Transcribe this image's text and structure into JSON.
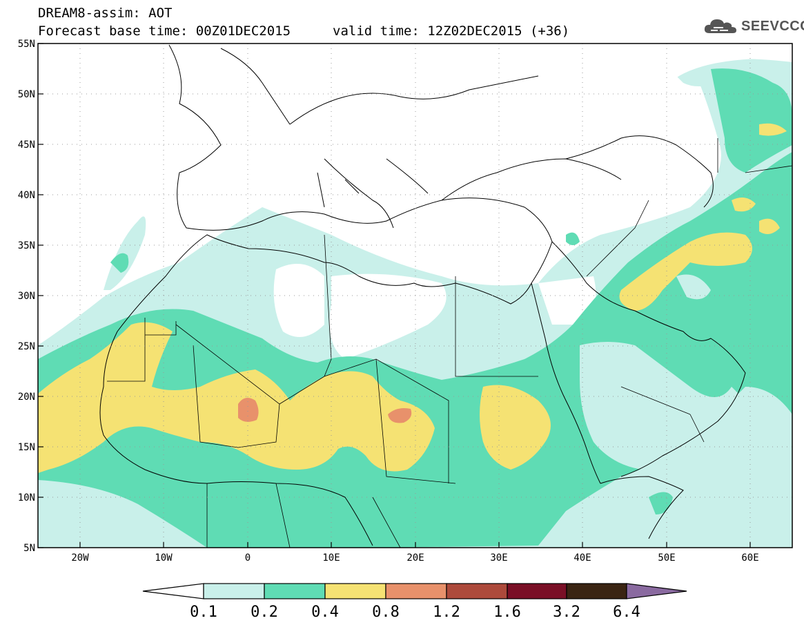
{
  "header": {
    "title_line1": "DREAM8-assim: AOT",
    "base_time_label": "Forecast base time: 00Z01DEC2015",
    "valid_time_label": "valid time: 12Z02DEC2015 (+36)"
  },
  "logo": {
    "text": "SEEVCCC",
    "icon": "cloud-icon"
  },
  "map": {
    "lon_range": [
      -25,
      65
    ],
    "lat_range": [
      5,
      55
    ],
    "lat_ticks": [
      "55N",
      "50N",
      "45N",
      "40N",
      "35N",
      "30N",
      "25N",
      "20N",
      "15N",
      "10N",
      "5N"
    ],
    "lon_ticks": [
      "20W",
      "10W",
      "0",
      "10E",
      "20E",
      "30E",
      "40E",
      "50E",
      "60E"
    ]
  },
  "legend": {
    "labels": [
      "0.1",
      "0.2",
      "0.4",
      "0.8",
      "1.2",
      "1.6",
      "3.2",
      "6.4"
    ],
    "colors": [
      "#ffffff",
      "#c9f0ea",
      "#5fdcb4",
      "#f5e273",
      "#e8916b",
      "#ad4a3b",
      "#7a0f26",
      "#3a2412",
      "#8a6aa0"
    ]
  }
}
